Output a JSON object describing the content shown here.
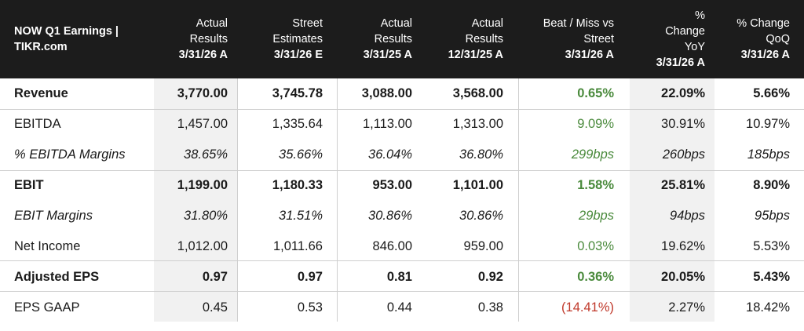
{
  "header": {
    "title_line1": "NOW Q1 Earnings |",
    "title_line2": "TIKR.com",
    "columns": [
      {
        "l1": "Actual",
        "l2": "Results",
        "l3": "3/31/26 A"
      },
      {
        "l1": "Street",
        "l2": "Estimates",
        "l3": "3/31/26 E"
      },
      {
        "l1": "Actual",
        "l2": "Results",
        "l3": "3/31/25 A"
      },
      {
        "l1": "Actual",
        "l2": "Results",
        "l3": "12/31/25 A"
      },
      {
        "l1": "Beat / Miss vs",
        "l2": "Street",
        "l3": "3/31/26 A"
      },
      {
        "l0": "%",
        "l1": "Change",
        "l2": "YoY",
        "l3": "3/31/26 A"
      },
      {
        "l1": "% Change",
        "l2": "QoQ",
        "l3": "3/31/26 A"
      }
    ]
  },
  "rows": [
    {
      "label": "Revenue",
      "values": [
        "3,770.00",
        "3,745.78",
        "3,088.00",
        "3,568.00",
        "0.65%",
        "22.09%",
        "5.66%"
      ]
    },
    {
      "label": "EBITDA",
      "values": [
        "1,457.00",
        "1,335.64",
        "1,113.00",
        "1,313.00",
        "9.09%",
        "30.91%",
        "10.97%"
      ]
    },
    {
      "label": "% EBITDA Margins",
      "values": [
        "38.65%",
        "35.66%",
        "36.04%",
        "36.80%",
        "299bps",
        "260bps",
        "185bps"
      ]
    },
    {
      "label": "EBIT",
      "values": [
        "1,199.00",
        "1,180.33",
        "953.00",
        "1,101.00",
        "1.58%",
        "25.81%",
        "8.90%"
      ]
    },
    {
      "label": "EBIT Margins",
      "values": [
        "31.80%",
        "31.51%",
        "30.86%",
        "30.86%",
        "29bps",
        "94bps",
        "95bps"
      ]
    },
    {
      "label": "Net Income",
      "values": [
        "1,012.00",
        "1,011.66",
        "846.00",
        "959.00",
        "0.03%",
        "19.62%",
        "5.53%"
      ]
    },
    {
      "label": "Adjusted EPS",
      "values": [
        "0.97",
        "0.97",
        "0.81",
        "0.92",
        "0.36%",
        "20.05%",
        "5.43%"
      ]
    },
    {
      "label": "EPS GAAP",
      "values": [
        "0.45",
        "0.53",
        "0.44",
        "0.38",
        "(14.41%)",
        "2.27%",
        "18.42%"
      ]
    }
  ],
  "colors": {
    "header_bg": "#1c1c1c",
    "beat": "#4a8a3c",
    "miss": "#c0392b",
    "shade": "#f1f1f1"
  }
}
